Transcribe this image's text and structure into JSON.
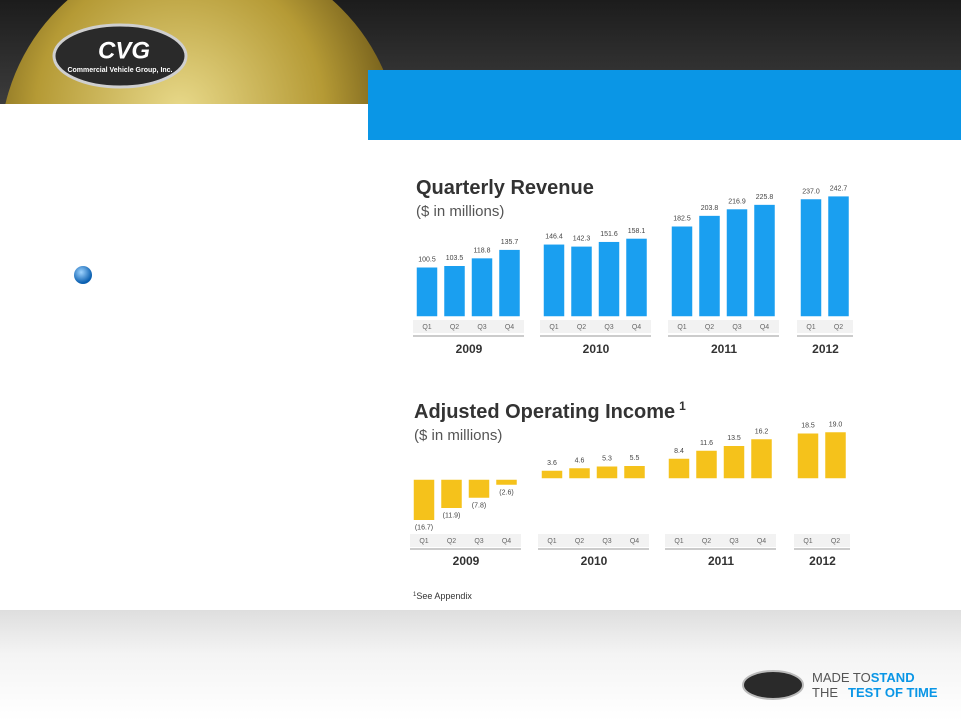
{
  "logo": {
    "name": "CVG",
    "company": "Commercial Vehicle Group, Inc."
  },
  "tagline": {
    "line1": "MADE TO",
    "line1_bold": "STAND",
    "line2": "THE",
    "line2_bold": "TEST OF TIME"
  },
  "footnote": {
    "marker": "1",
    "text": "See Appendix"
  },
  "chart_data": [
    {
      "type": "bar",
      "title": "Quarterly Revenue",
      "subtitle": "($ in millions)",
      "color": "#1a9ff0",
      "groups": [
        {
          "name": "2009",
          "categories": [
            "Q1",
            "Q2",
            "Q3",
            "Q4"
          ],
          "values": [
            100.5,
            103.5,
            118.8,
            135.7
          ],
          "value_labels": [
            "100.5",
            "103.5",
            "118.8",
            "135.7"
          ]
        },
        {
          "name": "2010",
          "categories": [
            "Q1",
            "Q2",
            "Q3",
            "Q4"
          ],
          "values": [
            146.4,
            142.3,
            151.6,
            158.1
          ],
          "value_labels": [
            "146.4",
            "142.3",
            "151.6",
            "158.1"
          ]
        },
        {
          "name": "2011",
          "categories": [
            "Q1",
            "Q2",
            "Q3",
            "Q4"
          ],
          "values": [
            182.5,
            203.8,
            216.9,
            225.8
          ],
          "value_labels": [
            "182.5",
            "203.8",
            "216.9",
            "225.8"
          ]
        },
        {
          "name": "2012",
          "categories": [
            "Q1",
            "Q2"
          ],
          "values": [
            237.0,
            242.7
          ],
          "value_labels": [
            "237.0",
            "242.7"
          ]
        }
      ]
    },
    {
      "type": "bar",
      "title": "Adjusted Operating Income",
      "title_note": "1",
      "subtitle": "($ in millions)",
      "color": "#f5c21b",
      "groups": [
        {
          "name": "2009",
          "categories": [
            "Q1",
            "Q2",
            "Q3",
            "Q4"
          ],
          "values": [
            -16.7,
            -11.9,
            -7.8,
            -2.6
          ],
          "value_labels": [
            "(16.7)",
            "(11.9)",
            "(7.8)",
            "(2.6)"
          ]
        },
        {
          "name": "2010",
          "categories": [
            "Q1",
            "Q2",
            "Q3",
            "Q4"
          ],
          "values": [
            3.6,
            4.6,
            5.3,
            5.5
          ],
          "value_labels": [
            "3.6",
            "4.6",
            "5.3",
            "5.5"
          ]
        },
        {
          "name": "2011",
          "categories": [
            "Q1",
            "Q2",
            "Q3",
            "Q4"
          ],
          "values": [
            8.4,
            11.6,
            13.5,
            16.2
          ],
          "value_labels": [
            "8.4",
            "11.6",
            "13.5",
            "16.2"
          ]
        },
        {
          "name": "2012",
          "categories": [
            "Q1",
            "Q2"
          ],
          "values": [
            18.5,
            19.0
          ],
          "value_labels": [
            "18.5",
            "19.0"
          ]
        }
      ]
    }
  ]
}
